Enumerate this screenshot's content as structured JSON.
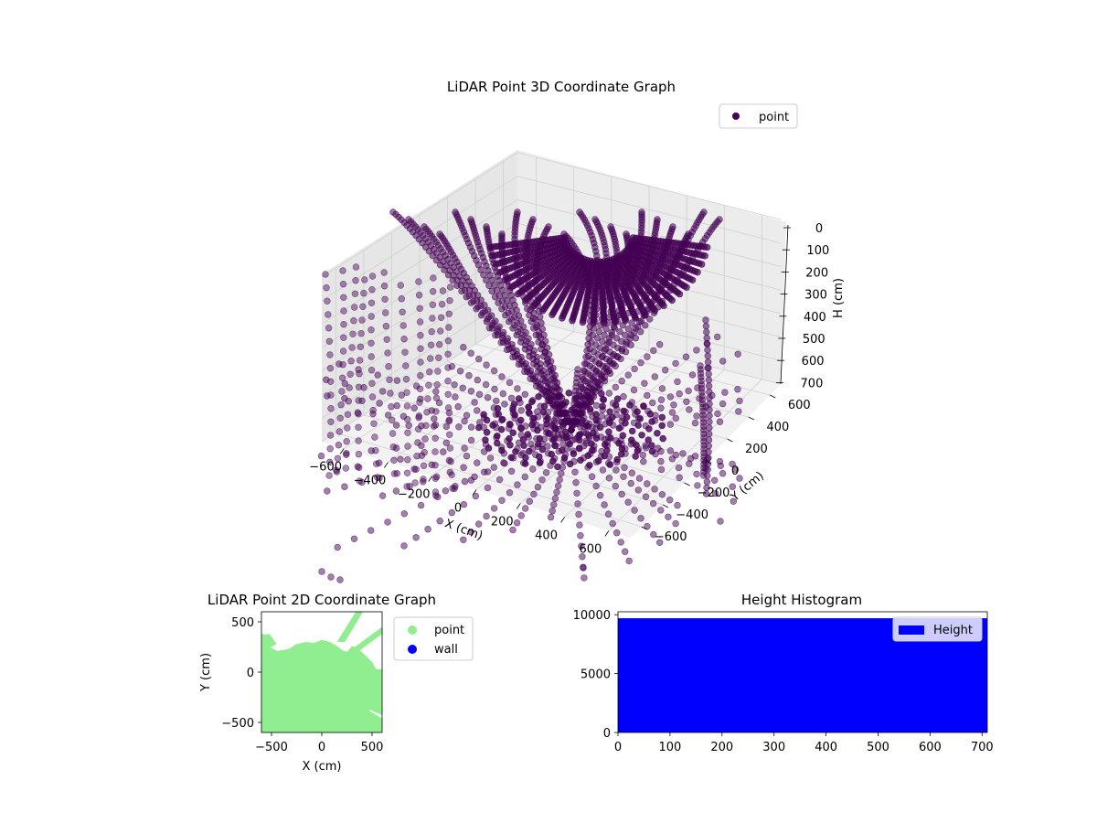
{
  "chart_data": [
    {
      "type": "scatter",
      "projection": "3d",
      "title": "LiDAR Point 3D Coordinate Graph",
      "xlabel": "X (cm)",
      "ylabel": "Y (cm)",
      "zlabel": "H (cm)",
      "xlim": [
        -700,
        700
      ],
      "ylim": [
        -700,
        700
      ],
      "zlim": [
        700,
        0
      ],
      "xticks": [
        -600,
        -400,
        -200,
        0,
        200,
        400,
        600
      ],
      "yticks": [
        -600,
        -400,
        -200,
        0,
        200,
        400,
        600
      ],
      "zticks": [
        0,
        100,
        200,
        300,
        400,
        500,
        600,
        700
      ],
      "legend": {
        "placement": "upper-right",
        "entries": [
          {
            "label": "point",
            "color": "#440154"
          }
        ]
      },
      "grid": true,
      "series": [
        {
          "name": "point",
          "color": "#440154",
          "alpha": 0.5
        }
      ]
    },
    {
      "type": "scatter",
      "title": "LiDAR Point 2D Coordinate Graph",
      "xlabel": "X (cm)",
      "ylabel": "Y (cm)",
      "xlim": [
        -600,
        600
      ],
      "ylim": [
        -600,
        600
      ],
      "xticks": [
        -500,
        0,
        500
      ],
      "yticks": [
        -500,
        0,
        500
      ],
      "legend": {
        "placement": "outside-right",
        "entries": [
          {
            "label": "point",
            "color": "#90ee90"
          },
          {
            "label": "wall",
            "color": "#0000ff"
          }
        ]
      },
      "series": [
        {
          "name": "point",
          "color": "#90ee90"
        },
        {
          "name": "wall",
          "color": "#0000ff"
        }
      ]
    },
    {
      "type": "bar",
      "subtype": "histogram",
      "title": "Height Histogram",
      "xlim": [
        0,
        710
      ],
      "ylim": [
        0,
        10000
      ],
      "xticks": [
        0,
        100,
        200,
        300,
        400,
        500,
        600,
        700
      ],
      "yticks": [
        0,
        5000,
        10000
      ],
      "bins": [
        {
          "x0": 0,
          "x1": 710,
          "count": 9700
        }
      ],
      "legend": {
        "placement": "upper-right",
        "entries": [
          {
            "label": "Height",
            "color": "#0000ff"
          }
        ]
      },
      "series": [
        {
          "name": "Height",
          "color": "#0000ff"
        }
      ]
    }
  ]
}
